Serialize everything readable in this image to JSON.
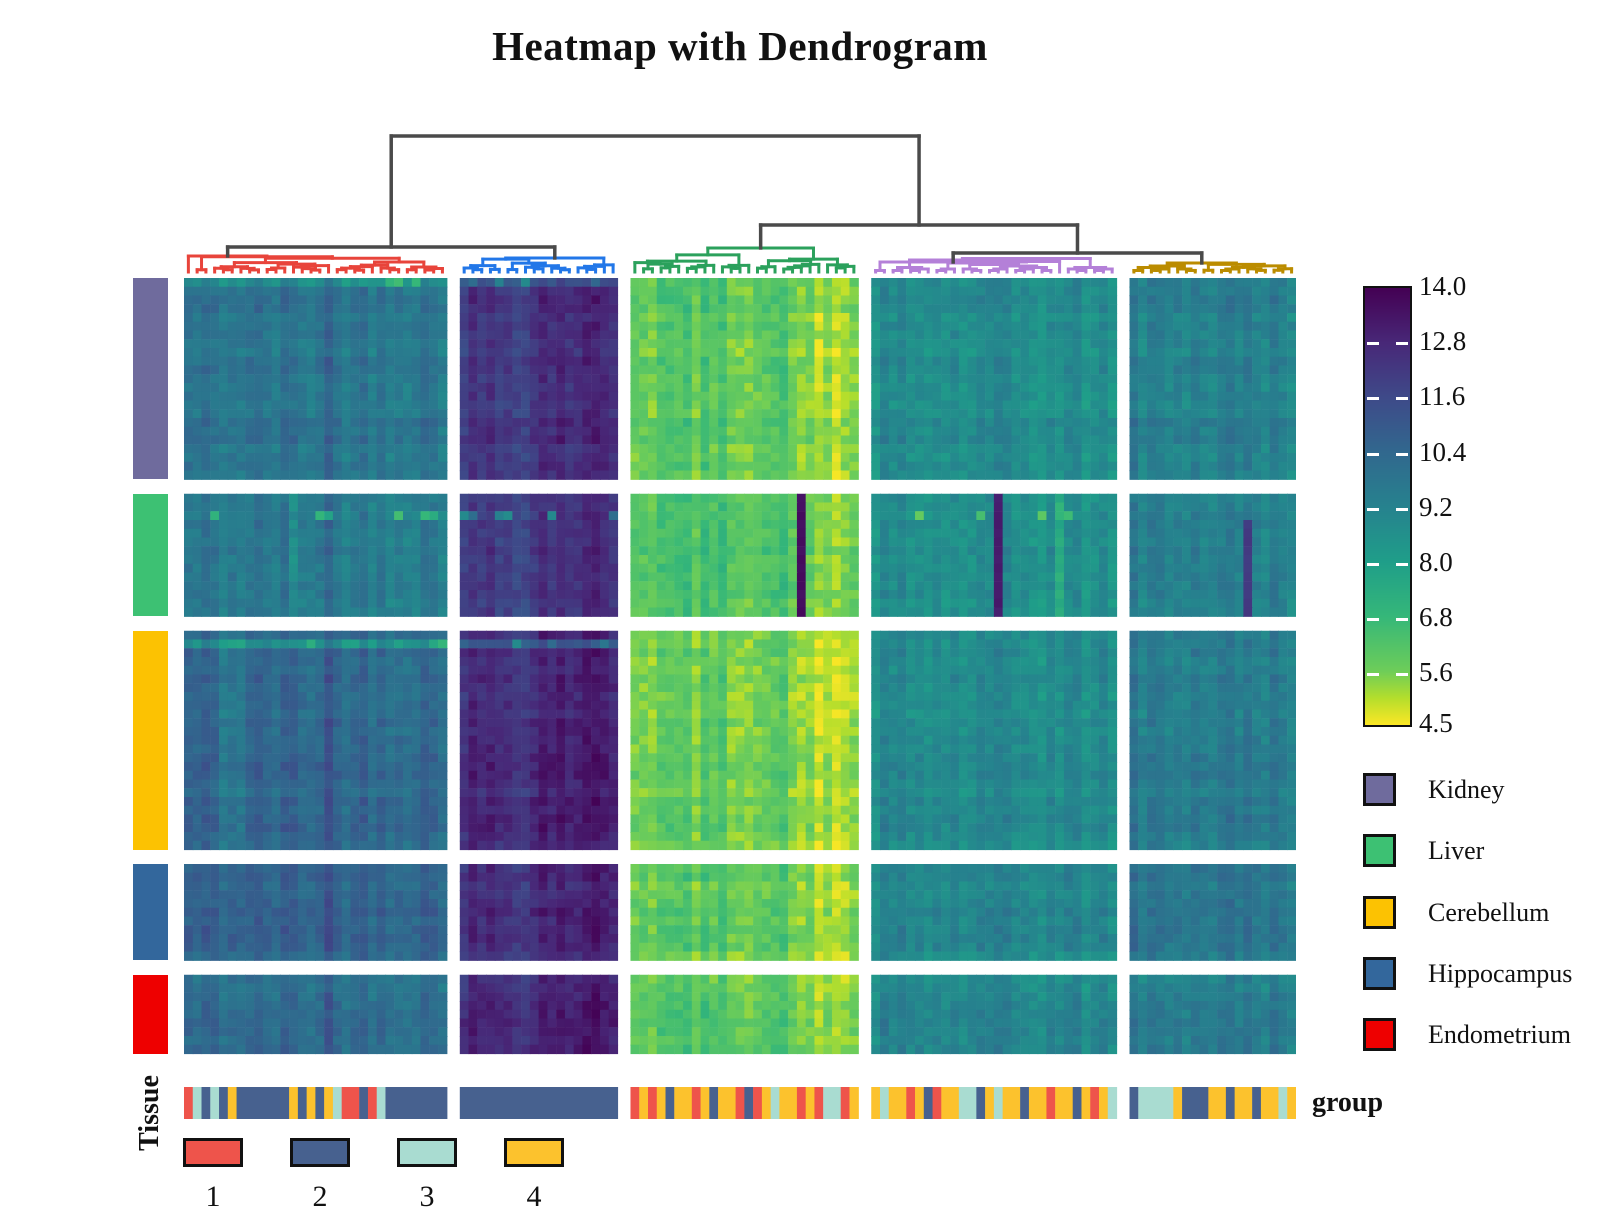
{
  "title": "Heatmap with Dendrogram",
  "labels": {
    "tissue_annotation_title": "Tissue",
    "group_annotation_title": "group"
  },
  "colorbar": {
    "ticks": [
      "14.0",
      "12.8",
      "11.6",
      "10.4",
      "9.2",
      "8.0",
      "6.8",
      "5.6",
      "4.5"
    ],
    "vmin": 4.5,
    "vmax": 14.0,
    "border_color": "#111111",
    "tick_dash_color": "#ffffff"
  },
  "chart_data": {
    "type": "heatmap",
    "title": "Heatmap with Dendrogram",
    "value_domain": [
      4.5,
      14.0
    ],
    "colormap": {
      "name": "viridis-reversed-high-is-dark",
      "stops": [
        [
          0.0,
          "#440154"
        ],
        [
          0.125,
          "#482878"
        ],
        [
          0.25,
          "#3e4a89"
        ],
        [
          0.375,
          "#31688e"
        ],
        [
          0.5,
          "#26828e"
        ],
        [
          0.625,
          "#1f9e89"
        ],
        [
          0.75,
          "#35b779"
        ],
        [
          0.875,
          "#6dcd59"
        ],
        [
          0.9375,
          "#b4de2c"
        ],
        [
          1.0,
          "#fde725"
        ]
      ]
    },
    "row_groups": [
      {
        "name": "Kidney",
        "color": "#6f6b9d",
        "rows": 23
      },
      {
        "name": "Liver",
        "color": "#3dc173",
        "rows": 14
      },
      {
        "name": "Cerebellum",
        "color": "#fcc202",
        "rows": 25
      },
      {
        "name": "Hippocampus",
        "color": "#33679c",
        "rows": 11
      },
      {
        "name": "Endometrium",
        "color": "#ee0000",
        "rows": 9
      }
    ],
    "column_clusters": [
      {
        "id": "c1",
        "color": "#e8443b",
        "columns": 30
      },
      {
        "id": "c2",
        "color": "#2277e8",
        "columns": 18
      },
      {
        "id": "c3",
        "color": "#2ba15c",
        "columns": 26
      },
      {
        "id": "c4",
        "color": "#b480d8",
        "columns": 28
      },
      {
        "id": "c5",
        "color": "#bb8c00",
        "columns": 19
      }
    ],
    "dendrogram_line_color": "#4a4a4a",
    "block_means": [
      [
        9.9,
        12.3,
        6.1,
        8.8,
        9.4
      ],
      [
        9.7,
        12.1,
        6.4,
        8.7,
        9.4
      ],
      [
        10.5,
        12.7,
        5.9,
        8.9,
        9.6
      ],
      [
        10.6,
        12.5,
        6.0,
        9.0,
        9.8
      ],
      [
        10.2,
        12.7,
        6.1,
        9.0,
        9.5
      ]
    ],
    "noise": {
      "cell": 0.85,
      "column": 0.9,
      "row": 0.5,
      "seed": 42
    },
    "column_features": [
      {
        "block": 1,
        "from_col": 9,
        "to_col": 17,
        "delta": 0.45
      },
      {
        "block": 2,
        "from_col": 19,
        "to_col": 25,
        "delta": -0.8
      },
      {
        "block": 0,
        "from_col": 16,
        "to_col": 16,
        "delta": 0.7
      },
      {
        "block": 0,
        "from_col": 4,
        "to_col": 6,
        "delta": -0.6,
        "tissue": 2
      }
    ],
    "marker_columns": [
      {
        "block": 2,
        "col": 19,
        "tissue": 1,
        "value": 13.6
      },
      {
        "block": 3,
        "col": 14,
        "tissue": 1,
        "value": 13.2
      },
      {
        "block": 4,
        "col": 13,
        "tissue": 1,
        "value": 12.2,
        "row_from": 3
      },
      {
        "block": 0,
        "col": 12,
        "tissue": 1,
        "delta": -1.1
      },
      {
        "block": 3,
        "col": 21,
        "tissue": 1,
        "delta": -1.2
      }
    ],
    "marker_rows": [
      {
        "tissue": 0,
        "row": 0,
        "blocks": [
          0,
          1
        ],
        "delta": -1.2,
        "spots": {
          "count": 4,
          "delta": -1.5
        }
      },
      {
        "tissue": 2,
        "row": 1,
        "blocks": [
          0,
          1
        ],
        "delta": -1.6,
        "spots": {
          "count": 5,
          "delta": -1.3
        }
      },
      {
        "tissue": 1,
        "row": 2,
        "blocks": [
          0,
          1,
          3
        ],
        "delta": 0,
        "spots": {
          "count": 7,
          "delta": -2.4
        }
      }
    ],
    "group_bar": {
      "title": "group",
      "classes": [
        {
          "label": "1",
          "color": "#ee544b"
        },
        {
          "label": "2",
          "color": "#47618f"
        },
        {
          "label": "3",
          "color": "#a9dcd1"
        },
        {
          "label": "4",
          "color": "#fcc22d"
        }
      ],
      "segments_per_block": [
        [
          [
            1,
            1
          ],
          [
            3,
            1
          ],
          [
            2,
            1
          ],
          [
            3,
            1
          ],
          [
            2,
            1
          ],
          [
            4,
            1
          ],
          [
            2,
            6
          ],
          [
            4,
            1
          ],
          [
            2,
            1
          ],
          [
            4,
            1
          ],
          [
            2,
            1
          ],
          [
            4,
            1
          ],
          [
            3,
            1
          ],
          [
            1,
            2
          ],
          [
            2,
            1
          ],
          [
            1,
            1
          ],
          [
            3,
            1
          ],
          [
            2,
            7
          ]
        ],
        [
          [
            2,
            18
          ]
        ],
        [
          [
            1,
            1
          ],
          [
            4,
            1
          ],
          [
            1,
            1
          ],
          [
            4,
            1
          ],
          [
            2,
            1
          ],
          [
            4,
            2
          ],
          [
            1,
            1
          ],
          [
            4,
            1
          ],
          [
            2,
            1
          ],
          [
            4,
            2
          ],
          [
            1,
            1
          ],
          [
            2,
            1
          ],
          [
            1,
            1
          ],
          [
            4,
            1
          ],
          [
            3,
            1
          ],
          [
            4,
            2
          ],
          [
            1,
            1
          ],
          [
            4,
            1
          ],
          [
            1,
            1
          ],
          [
            3,
            2
          ],
          [
            1,
            1
          ],
          [
            4,
            1
          ]
        ],
        [
          [
            4,
            1
          ],
          [
            3,
            1
          ],
          [
            4,
            2
          ],
          [
            1,
            1
          ],
          [
            4,
            1
          ],
          [
            2,
            1
          ],
          [
            1,
            1
          ],
          [
            4,
            2
          ],
          [
            3,
            2
          ],
          [
            2,
            1
          ],
          [
            4,
            1
          ],
          [
            3,
            1
          ],
          [
            4,
            2
          ],
          [
            2,
            1
          ],
          [
            4,
            2
          ],
          [
            1,
            1
          ],
          [
            4,
            2
          ],
          [
            2,
            1
          ],
          [
            4,
            1
          ],
          [
            1,
            1
          ],
          [
            4,
            1
          ],
          [
            3,
            1
          ]
        ],
        [
          [
            2,
            1
          ],
          [
            3,
            4
          ],
          [
            4,
            1
          ],
          [
            2,
            3
          ],
          [
            4,
            2
          ],
          [
            2,
            1
          ],
          [
            4,
            2
          ],
          [
            2,
            1
          ],
          [
            4,
            2
          ],
          [
            3,
            1
          ],
          [
            4,
            1
          ]
        ]
      ]
    }
  }
}
